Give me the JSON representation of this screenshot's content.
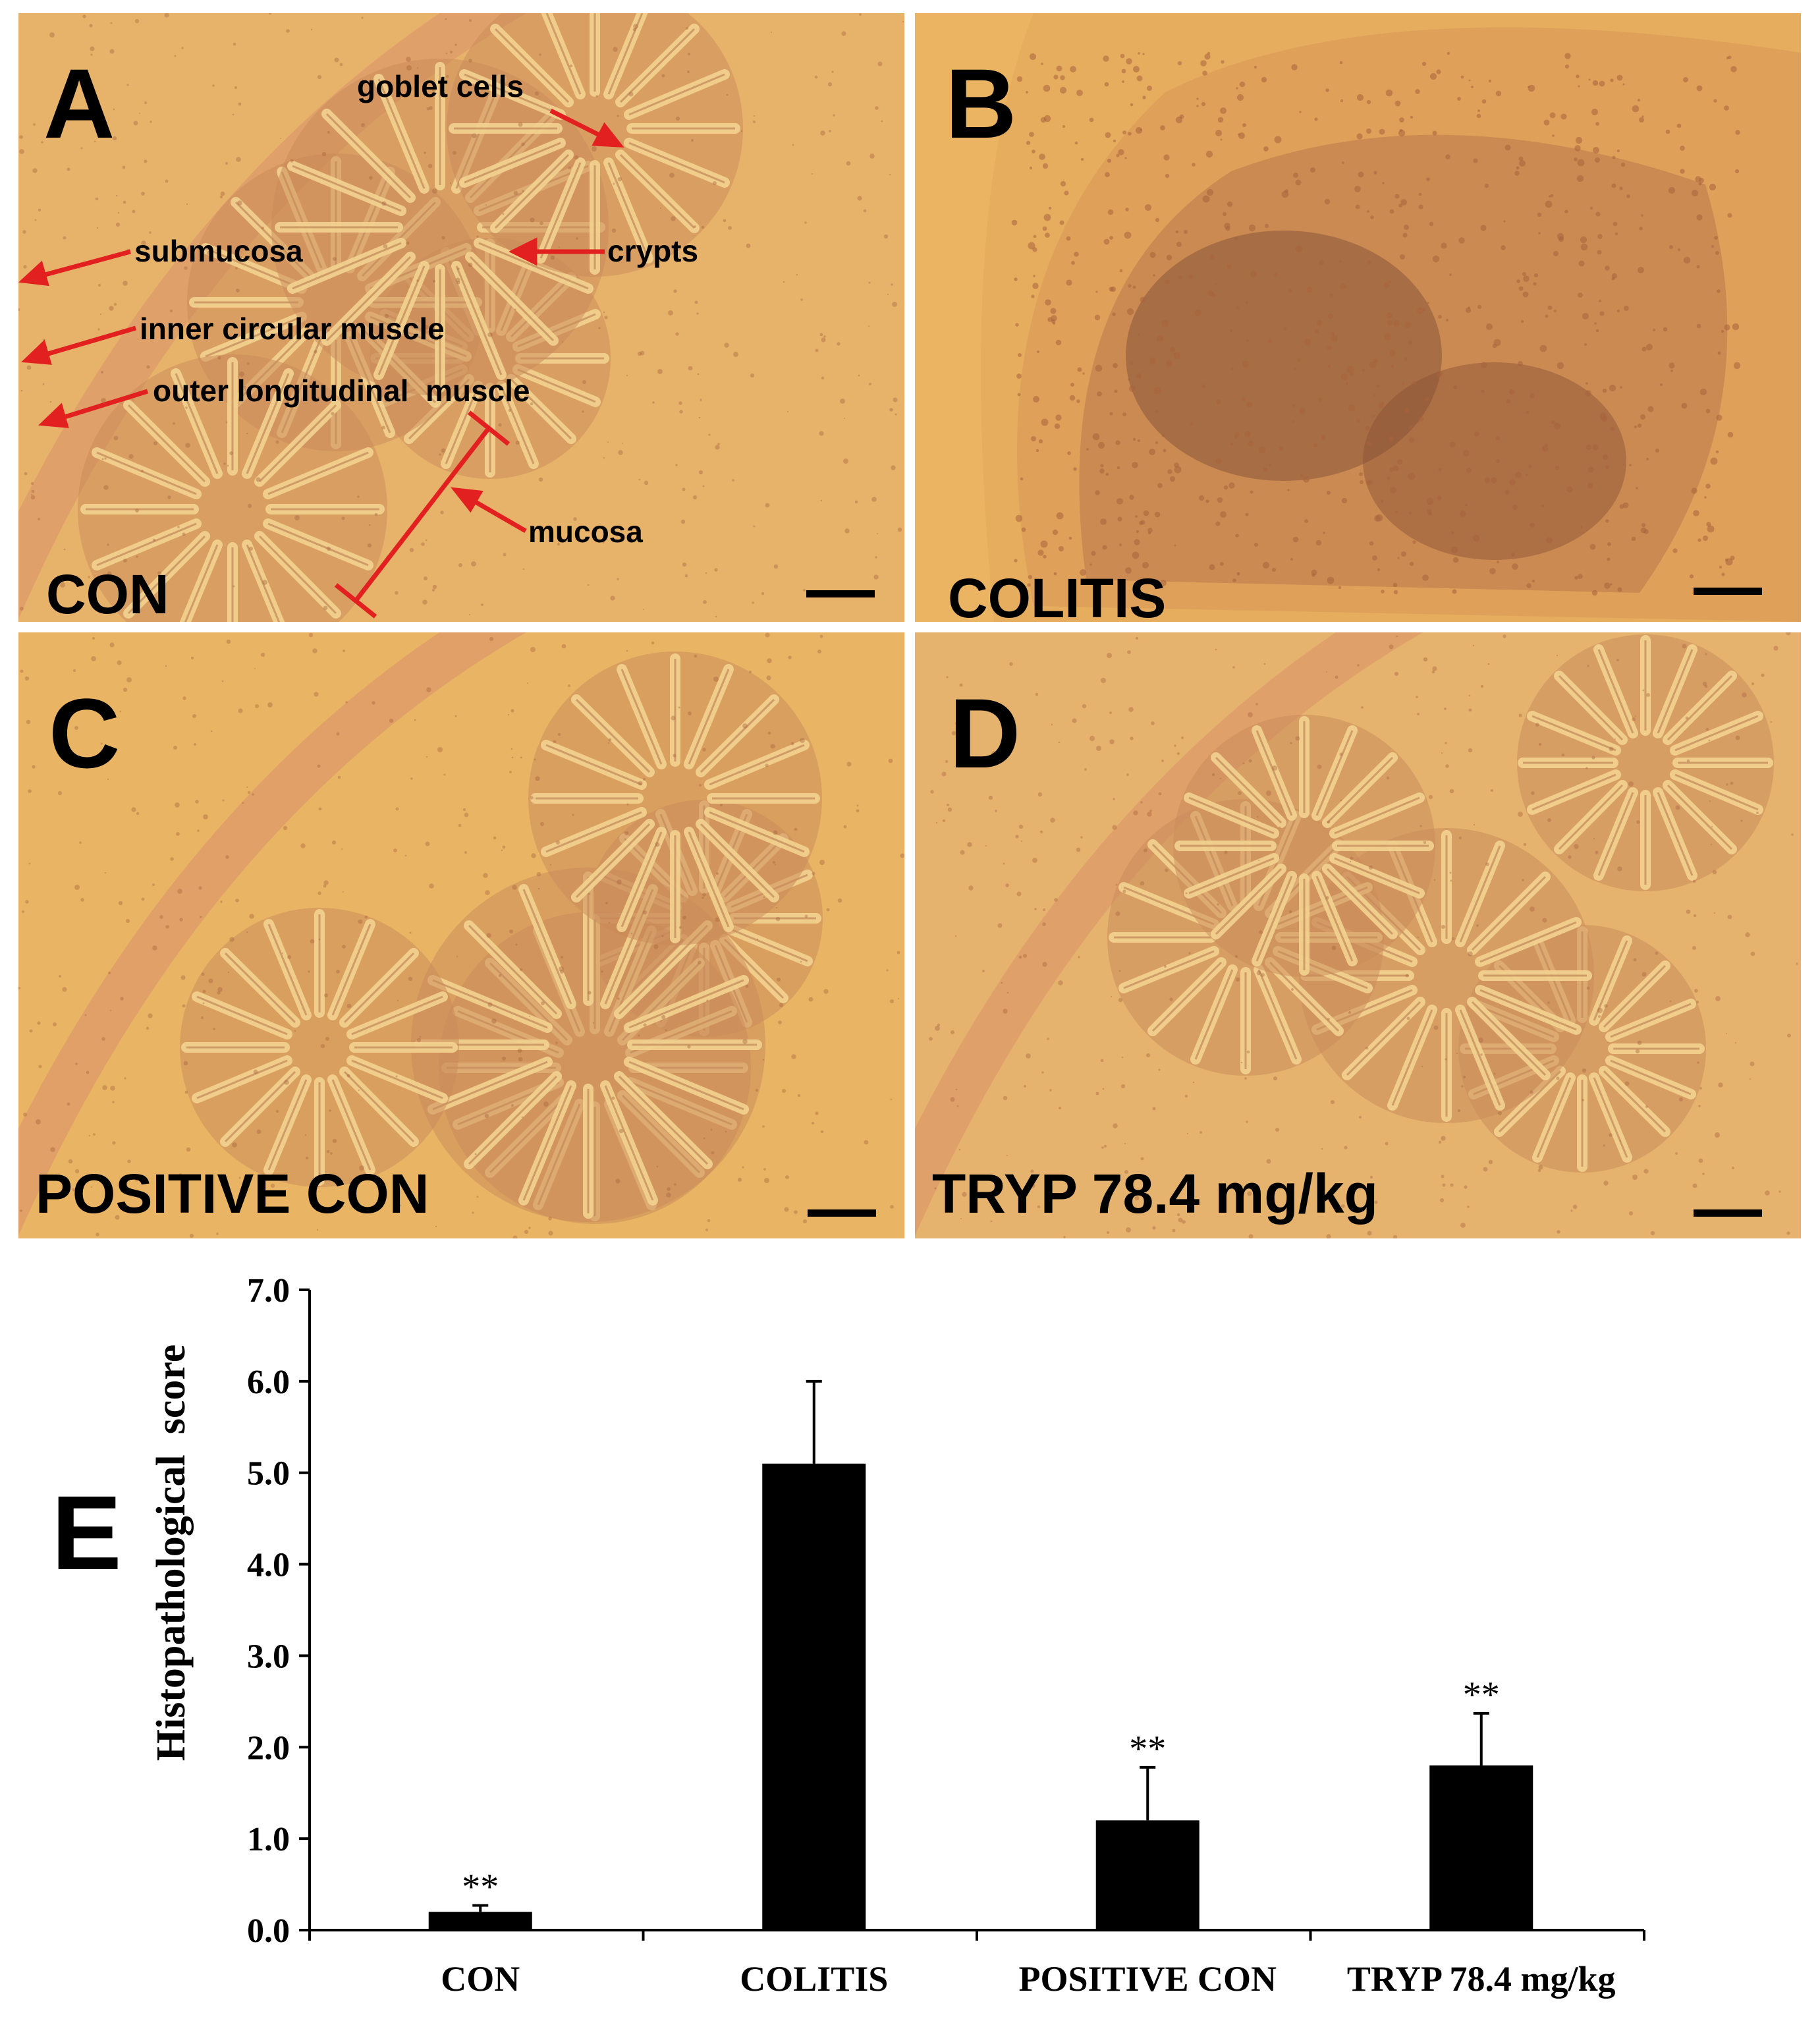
{
  "panels": [
    {
      "letter": "A",
      "label": "CON",
      "bg": "#e7b26a",
      "annotations": [
        "goblet cells",
        "crypts",
        "submucosa",
        "inner circular muscle",
        "outer longitudinal  muscle",
        "mucosa"
      ]
    },
    {
      "letter": "B",
      "label": "COLITIS",
      "bg": "#e6ad5e"
    },
    {
      "letter": "C",
      "label": "POSITIVE CON",
      "bg": "#e9b565"
    },
    {
      "letter": "D",
      "label": "TRYP 78.4 mg/kg",
      "bg": "#e5b36e"
    }
  ],
  "chart_letter": "E",
  "colors": {
    "bar": "#000000",
    "arrow": "#e32020",
    "stain_dark": "#a8623c",
    "stain_light": "#f3d390"
  },
  "chart_data": {
    "type": "bar",
    "categories": [
      "CON",
      "COLITIS",
      "POSITIVE CON",
      "TRYP 78.4 mg/kg"
    ],
    "values": [
      0.2,
      5.1,
      1.2,
      1.8
    ],
    "errors": [
      0.07,
      0.9,
      0.58,
      0.57
    ],
    "significance": [
      "**",
      "",
      "**",
      "**"
    ],
    "ylabel": "Histopathological  score",
    "xlabel": "",
    "ylim": [
      0,
      7
    ],
    "yticks": [
      "0.0",
      "1.0",
      "2.0",
      "3.0",
      "4.0",
      "5.0",
      "6.0",
      "7.0"
    ],
    "grid": false
  }
}
